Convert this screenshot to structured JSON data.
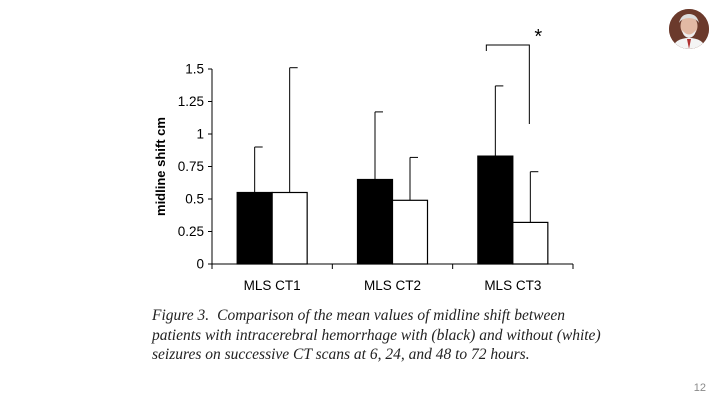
{
  "chart_data": {
    "type": "bar",
    "title": "",
    "xlabel": "",
    "ylabel": "midline shift cm",
    "ylim": [
      0,
      1.5
    ],
    "yticks": [
      "0",
      "0.25",
      "0.5",
      "0.75",
      "1",
      "1.25",
      "1.5"
    ],
    "categories": [
      "MLS CT1",
      "MLS CT2",
      "MLS CT3"
    ],
    "series": [
      {
        "name": "with seizures (black)",
        "color": "#000000",
        "values": [
          0.55,
          0.65,
          0.83
        ],
        "error_upper": [
          0.9,
          1.17,
          1.37
        ]
      },
      {
        "name": "without seizures (white)",
        "color": "#ffffff",
        "values": [
          0.55,
          0.49,
          0.32
        ],
        "error_upper": [
          1.51,
          0.82,
          0.71
        ]
      }
    ],
    "significance": {
      "category": "MLS CT3",
      "label": "*"
    }
  },
  "caption": {
    "label": "Figure 3.",
    "text": "Comparison of the mean values of midline shift between patients with intracerebral hemorrhage with (black) and without (white) seizures on successive CT scans at 6, 24, and 48 to 72 hours."
  },
  "slide_number": "12"
}
